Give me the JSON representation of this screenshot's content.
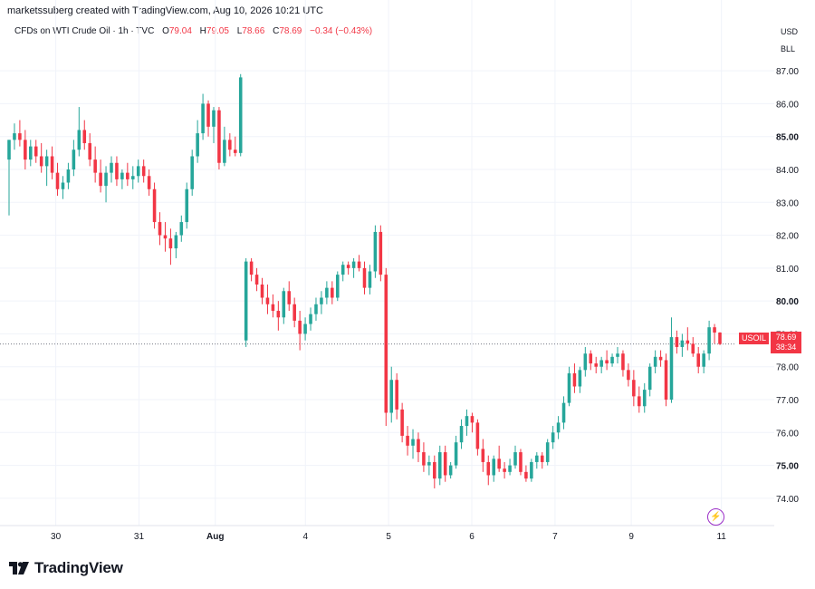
{
  "header": {
    "text": "marketssuberg created with TradingView.com, Aug 10, 2026 10:21 UTC"
  },
  "legend": {
    "symbol": "CFDs on WTI Crude Oil · 1h · TVC",
    "open_label": "O",
    "open": "79.04",
    "high_label": "H",
    "high": "79.05",
    "low_label": "L",
    "low": "78.66",
    "close_label": "C",
    "close": "78.69",
    "change": "−0.34 (−0.43%)"
  },
  "axis_meta": {
    "currency": "USD",
    "unit": "BLL"
  },
  "price_tag": {
    "symbol": "USOIL",
    "price": "78.69",
    "countdown": "38:34"
  },
  "footer": {
    "brand": "TradingView"
  },
  "colors": {
    "up": "#26a69a",
    "down": "#f23645",
    "grid": "#f0f3fa",
    "text": "#131722"
  },
  "chart_data": {
    "type": "candlestick",
    "y_ticks": [
      "87.00",
      "86.00",
      "85.00",
      "84.00",
      "83.00",
      "82.00",
      "81.00",
      "80.00",
      "79.00",
      "78.00",
      "77.00",
      "76.00",
      "75.00",
      "74.00"
    ],
    "bold_ticks": [
      "85.00",
      "80.00",
      "75.00"
    ],
    "ylim": [
      73.5,
      87.5
    ],
    "x_ticks": [
      {
        "label": "30",
        "pos": 14
      },
      {
        "label": "31",
        "pos": 38
      },
      {
        "label": "Aug",
        "pos": 60,
        "bold": true
      },
      {
        "label": "4",
        "pos": 86
      },
      {
        "label": "5",
        "pos": 110
      },
      {
        "label": "6",
        "pos": 134
      },
      {
        "label": "7",
        "pos": 158
      },
      {
        "label": "9",
        "pos": 180
      },
      {
        "label": "11",
        "pos": 206
      }
    ],
    "x_range": [
      0,
      210
    ],
    "last_price": 78.69,
    "candles": [
      [
        84.3,
        84.9,
        82.6,
        84.9
      ],
      [
        84.9,
        85.4,
        84.6,
        85.1
      ],
      [
        85.1,
        85.5,
        84.7,
        84.9
      ],
      [
        84.9,
        85.2,
        84.0,
        84.3
      ],
      [
        84.3,
        84.9,
        84.1,
        84.7
      ],
      [
        84.7,
        84.9,
        84.2,
        84.4
      ],
      [
        84.4,
        84.8,
        83.9,
        84.1
      ],
      [
        84.1,
        84.6,
        83.5,
        84.4
      ],
      [
        84.4,
        84.7,
        83.7,
        83.9
      ],
      [
        83.9,
        84.2,
        83.2,
        83.4
      ],
      [
        83.4,
        83.8,
        83.1,
        83.6
      ],
      [
        83.6,
        84.2,
        83.4,
        84.0
      ],
      [
        84.0,
        84.9,
        83.8,
        84.6
      ],
      [
        84.6,
        85.9,
        84.4,
        85.2
      ],
      [
        85.2,
        85.5,
        84.6,
        84.8
      ],
      [
        84.8,
        85.1,
        84.1,
        84.3
      ],
      [
        84.3,
        84.7,
        83.6,
        83.9
      ],
      [
        83.9,
        84.3,
        83.3,
        83.5
      ],
      [
        83.5,
        84.1,
        83.0,
        83.9
      ],
      [
        83.9,
        84.4,
        83.6,
        84.2
      ],
      [
        84.2,
        84.4,
        83.5,
        83.7
      ],
      [
        83.7,
        84.0,
        83.4,
        83.9
      ],
      [
        83.9,
        84.2,
        83.5,
        83.7
      ],
      [
        83.7,
        84.1,
        83.4,
        83.8
      ],
      [
        83.8,
        84.3,
        83.6,
        84.1
      ],
      [
        84.1,
        84.3,
        83.6,
        83.8
      ],
      [
        83.8,
        84.0,
        83.2,
        83.4
      ],
      [
        83.4,
        83.6,
        82.2,
        82.4
      ],
      [
        82.4,
        82.7,
        81.7,
        82.0
      ],
      [
        82.0,
        82.4,
        81.5,
        81.9
      ],
      [
        81.9,
        82.2,
        81.1,
        81.6
      ],
      [
        81.6,
        82.1,
        81.3,
        82.0
      ],
      [
        82.0,
        82.6,
        81.8,
        82.4
      ],
      [
        82.4,
        83.6,
        82.2,
        83.4
      ],
      [
        83.4,
        84.6,
        83.2,
        84.4
      ],
      [
        84.4,
        85.5,
        84.2,
        85.1
      ],
      [
        85.1,
        86.3,
        84.9,
        86.0
      ],
      [
        86.0,
        86.1,
        85.0,
        85.3
      ],
      [
        85.3,
        85.9,
        84.8,
        85.8
      ],
      [
        85.8,
        85.9,
        84.0,
        84.2
      ],
      [
        84.2,
        85.3,
        84.1,
        84.9
      ],
      [
        84.9,
        85.1,
        84.4,
        84.6
      ],
      [
        84.6,
        85.0,
        84.4,
        84.5
      ],
      [
        84.5,
        86.9,
        84.4,
        86.8
      ],
      [
        78.8,
        81.3,
        78.6,
        81.2
      ],
      [
        81.2,
        81.3,
        80.6,
        80.8
      ],
      [
        80.8,
        81.0,
        80.3,
        80.5
      ],
      [
        80.5,
        80.7,
        79.9,
        80.1
      ],
      [
        80.1,
        80.5,
        79.6,
        79.9
      ],
      [
        79.9,
        80.2,
        79.5,
        79.7
      ],
      [
        79.7,
        80.0,
        79.1,
        79.5
      ],
      [
        79.5,
        80.4,
        79.3,
        80.3
      ],
      [
        80.3,
        80.6,
        79.7,
        79.9
      ],
      [
        79.9,
        80.1,
        79.2,
        79.4
      ],
      [
        79.4,
        79.7,
        78.5,
        79.0
      ],
      [
        79.0,
        79.5,
        78.8,
        79.3
      ],
      [
        79.3,
        79.8,
        79.1,
        79.6
      ],
      [
        79.6,
        80.1,
        79.4,
        79.9
      ],
      [
        79.9,
        80.3,
        79.6,
        80.1
      ],
      [
        80.1,
        80.6,
        79.9,
        80.4
      ],
      [
        80.4,
        80.6,
        79.9,
        80.1
      ],
      [
        80.1,
        80.9,
        80.0,
        80.8
      ],
      [
        80.8,
        81.2,
        80.6,
        81.1
      ],
      [
        81.1,
        81.2,
        80.8,
        81.0
      ],
      [
        81.0,
        81.3,
        80.7,
        81.2
      ],
      [
        81.2,
        81.4,
        80.9,
        81.0
      ],
      [
        81.0,
        81.2,
        80.2,
        80.4
      ],
      [
        80.4,
        81.1,
        80.2,
        80.9
      ],
      [
        80.9,
        82.3,
        80.7,
        82.1
      ],
      [
        82.1,
        82.3,
        80.6,
        80.8
      ],
      [
        80.8,
        81.0,
        76.2,
        76.6
      ],
      [
        76.6,
        78.0,
        76.3,
        77.6
      ],
      [
        77.6,
        77.8,
        76.4,
        76.7
      ],
      [
        76.7,
        76.9,
        75.7,
        75.9
      ],
      [
        75.9,
        76.2,
        75.3,
        75.6
      ],
      [
        75.6,
        76.1,
        75.2,
        75.8
      ],
      [
        75.8,
        76.0,
        75.1,
        75.4
      ],
      [
        75.4,
        75.7,
        74.8,
        75.0
      ],
      [
        75.0,
        75.3,
        74.7,
        75.1
      ],
      [
        75.1,
        75.3,
        74.3,
        74.6
      ],
      [
        74.6,
        75.6,
        74.4,
        75.4
      ],
      [
        75.4,
        75.6,
        74.5,
        74.7
      ],
      [
        74.7,
        75.1,
        74.6,
        75.0
      ],
      [
        75.0,
        75.9,
        74.9,
        75.7
      ],
      [
        75.7,
        76.4,
        75.5,
        76.2
      ],
      [
        76.2,
        76.7,
        75.9,
        76.5
      ],
      [
        76.5,
        76.6,
        76.0,
        76.3
      ],
      [
        76.3,
        76.4,
        75.3,
        75.5
      ],
      [
        75.5,
        75.8,
        74.8,
        75.1
      ],
      [
        75.1,
        75.3,
        74.4,
        74.7
      ],
      [
        74.7,
        75.3,
        74.5,
        75.2
      ],
      [
        75.2,
        75.6,
        74.8,
        74.9
      ],
      [
        74.9,
        75.1,
        74.6,
        74.8
      ],
      [
        74.8,
        75.2,
        74.7,
        75.0
      ],
      [
        75.0,
        75.6,
        74.9,
        75.4
      ],
      [
        75.4,
        75.5,
        74.7,
        74.8
      ],
      [
        74.8,
        75.0,
        74.5,
        74.6
      ],
      [
        74.6,
        75.2,
        74.5,
        75.1
      ],
      [
        75.1,
        75.4,
        74.9,
        75.3
      ],
      [
        75.3,
        75.4,
        74.9,
        75.1
      ],
      [
        75.1,
        75.8,
        75.0,
        75.7
      ],
      [
        75.7,
        76.2,
        75.5,
        76.0
      ],
      [
        76.0,
        76.5,
        75.8,
        76.3
      ],
      [
        76.3,
        77.1,
        76.1,
        76.9
      ],
      [
        76.9,
        78.0,
        76.8,
        77.8
      ],
      [
        77.8,
        78.1,
        77.2,
        77.4
      ],
      [
        77.4,
        78.0,
        77.2,
        77.9
      ],
      [
        77.9,
        78.6,
        77.7,
        78.4
      ],
      [
        78.4,
        78.5,
        77.9,
        78.1
      ],
      [
        78.1,
        78.3,
        77.8,
        78.0
      ],
      [
        78.0,
        78.3,
        77.8,
        78.2
      ],
      [
        78.2,
        78.5,
        77.9,
        78.1
      ],
      [
        78.1,
        78.4,
        78.0,
        78.3
      ],
      [
        78.3,
        78.6,
        78.1,
        78.4
      ],
      [
        78.4,
        78.5,
        77.7,
        77.9
      ],
      [
        77.9,
        78.1,
        77.4,
        77.6
      ],
      [
        77.6,
        77.9,
        76.8,
        77.1
      ],
      [
        77.1,
        77.4,
        76.6,
        76.8
      ],
      [
        76.8,
        77.5,
        76.6,
        77.3
      ],
      [
        77.3,
        78.1,
        77.1,
        78.0
      ],
      [
        78.0,
        78.5,
        77.8,
        78.3
      ],
      [
        78.3,
        78.5,
        78.0,
        78.2
      ],
      [
        78.2,
        78.4,
        76.8,
        77.0
      ],
      [
        77.0,
        79.5,
        76.9,
        78.9
      ],
      [
        78.9,
        79.1,
        78.4,
        78.6
      ],
      [
        78.6,
        79.0,
        78.3,
        78.8
      ],
      [
        78.8,
        79.2,
        78.5,
        78.7
      ],
      [
        78.7,
        78.9,
        78.3,
        78.4
      ],
      [
        78.4,
        78.6,
        77.8,
        78.0
      ],
      [
        78.0,
        78.5,
        77.8,
        78.4
      ],
      [
        78.4,
        79.4,
        78.2,
        79.2
      ],
      [
        79.2,
        79.3,
        78.7,
        79.04
      ],
      [
        79.04,
        79.05,
        78.66,
        78.69
      ]
    ]
  }
}
